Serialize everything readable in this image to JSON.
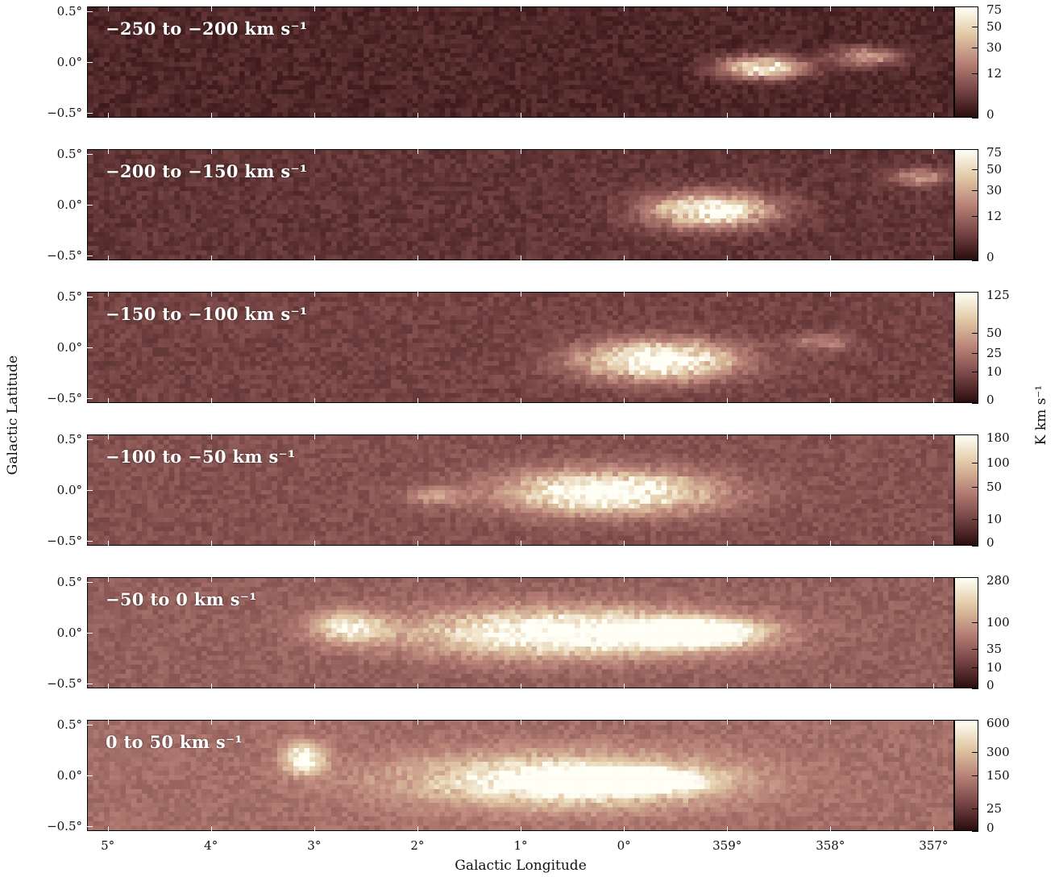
{
  "chart_data": {
    "type": "heatmap",
    "xlabel": "Galactic Longitude",
    "ylabel": "Galactic Latitude",
    "colorbar_label": "K km s⁻¹",
    "x_ticks": [
      "5°",
      "4°",
      "3°",
      "2°",
      "1°",
      "0°",
      "359°",
      "358°",
      "357°"
    ],
    "x_tick_values": [
      5.0,
      4.0,
      3.0,
      2.0,
      1.0,
      0.0,
      -1.0,
      -2.0,
      -3.0
    ],
    "xlim": [
      5.2,
      -3.2
    ],
    "y_ticks": [
      "0.5°",
      "0.0°",
      "−0.5°"
    ],
    "y_tick_values": [
      0.5,
      0.0,
      -0.5
    ],
    "ylim": [
      -0.55,
      0.55
    ],
    "colormap": "pink (dark maroon to white)",
    "panels": [
      {
        "label": "−250 to −200 km s⁻¹",
        "velocity_range": [
          -250,
          -200
        ],
        "colorbar_ticks": [
          "75",
          "50",
          "30",
          "12",
          "0"
        ],
        "colorbar_tick_values": [
          75,
          50,
          30,
          12,
          0
        ]
      },
      {
        "label": "−200 to −150 km s⁻¹",
        "velocity_range": [
          -200,
          -150
        ],
        "colorbar_ticks": [
          "75",
          "50",
          "30",
          "12",
          "0"
        ],
        "colorbar_tick_values": [
          75,
          50,
          30,
          12,
          0
        ]
      },
      {
        "label": "−150 to −100 km s⁻¹",
        "velocity_range": [
          -150,
          -100
        ],
        "colorbar_ticks": [
          "125",
          "50",
          "25",
          "10",
          "0"
        ],
        "colorbar_tick_values": [
          125,
          50,
          25,
          10,
          0
        ]
      },
      {
        "label": "−100 to −50 km s⁻¹",
        "velocity_range": [
          -100,
          -50
        ],
        "colorbar_ticks": [
          "180",
          "100",
          "50",
          "10",
          "0"
        ],
        "colorbar_tick_values": [
          180,
          100,
          50,
          10,
          0
        ]
      },
      {
        "label": "−50 to 0 km s⁻¹",
        "velocity_range": [
          -50,
          0
        ],
        "colorbar_ticks": [
          "280",
          "100",
          "35",
          "10",
          "0"
        ],
        "colorbar_tick_values": [
          280,
          100,
          35,
          10,
          0
        ]
      },
      {
        "label": "0 to 50 km s⁻¹",
        "velocity_range": [
          0,
          50
        ],
        "colorbar_ticks": [
          "600",
          "300",
          "150",
          "25",
          "0"
        ],
        "colorbar_tick_values": [
          600,
          300,
          150,
          25,
          0
        ]
      }
    ]
  }
}
